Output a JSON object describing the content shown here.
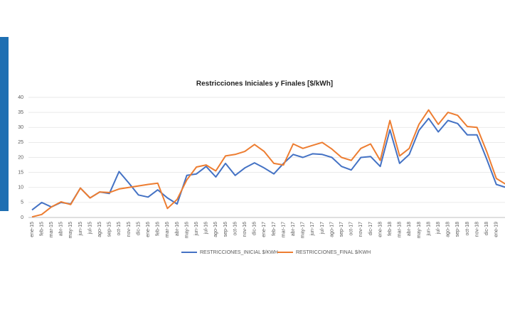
{
  "chart_data": {
    "type": "line",
    "title": "Restricciones Iniciales y Finales [$/kWh]",
    "categories": [
      "ene-15",
      "feb-15",
      "mar-15",
      "abr-15",
      "may-15",
      "jun-15",
      "jul-15",
      "ago-15",
      "sep-15",
      "oct-15",
      "nov-15",
      "dic-15",
      "ene-16",
      "feb-16",
      "mar-16",
      "abr-16",
      "may-16",
      "jun-16",
      "jul-16",
      "ago-16",
      "sep-16",
      "oct-16",
      "nov-16",
      "dic-16",
      "ene-17",
      "feb-17",
      "mar-17",
      "abr-17",
      "may-17",
      "jun-17",
      "jul-17",
      "ago-17",
      "sep-17",
      "oct-17",
      "nov-17",
      "dic-17",
      "ene-18",
      "feb-18",
      "mar-18",
      "abr-18",
      "may-18",
      "jun-18",
      "jul-18",
      "ago-18",
      "sep-18",
      "oct-18",
      "nov-18",
      "dic-18",
      "ene-19",
      null
    ],
    "series": [
      {
        "name": "RESTRICCIONES_INICIAL $/KWH",
        "color": "#4472c4",
        "values": [
          2.5,
          5,
          3.5,
          5,
          4.5,
          9.8,
          6.5,
          8.5,
          8,
          15.3,
          11.5,
          7.5,
          6.8,
          9.2,
          6.5,
          4.5,
          14,
          14.5,
          17,
          13.5,
          18,
          14,
          16.5,
          18.2,
          16.5,
          14.5,
          18,
          21,
          20,
          21.2,
          21,
          20,
          17,
          15.8,
          20,
          20.3,
          17,
          29.2,
          18,
          21,
          29,
          33,
          28.5,
          32.3,
          31.3,
          27.5,
          27.5,
          19.5,
          11,
          10
        ]
      },
      {
        "name": "RESTRICCIONES_FINAL $/KWH",
        "color": "#ed7d31",
        "values": [
          0.2,
          1,
          3.5,
          5.2,
          4.3,
          9.8,
          6.5,
          8.5,
          8.3,
          9.5,
          10,
          10.5,
          11,
          11.4,
          3,
          6,
          12.5,
          16.8,
          17.5,
          15.5,
          20.5,
          21,
          22,
          24.3,
          22,
          18,
          17.5,
          24.5,
          23,
          24,
          25,
          22.8,
          20,
          19,
          23,
          24.5,
          19,
          32.3,
          20.5,
          23,
          31,
          35.8,
          31,
          35,
          34,
          30.3,
          30,
          22,
          13,
          11
        ]
      }
    ],
    "ylim": [
      0,
      40
    ],
    "yticks": [
      0,
      5,
      10,
      15,
      20,
      25,
      30,
      35,
      40
    ],
    "grid": true
  }
}
